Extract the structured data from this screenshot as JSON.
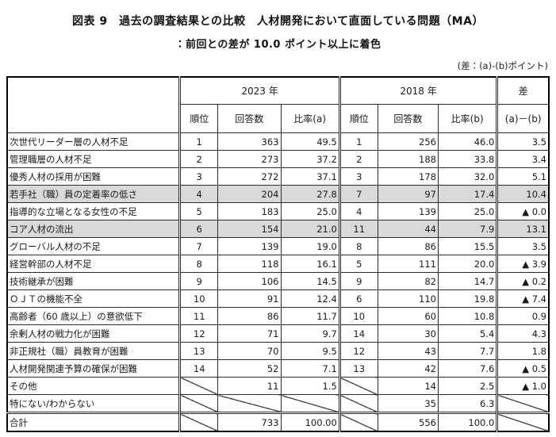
{
  "header": {
    "title": "図表 9　過去の調査結果との比較　人材開発において直面している問題（MA）",
    "subtitle": "：前回との差が 10.0 ポイント以上に着色",
    "note": "(差：(a)-(b)ポイント)"
  },
  "colors": {
    "shaded_row": "#d9d9d9",
    "border": "#2b2b2b",
    "text": "#1a1a1a"
  },
  "table": {
    "col_headers": {
      "y2023": "2023 年",
      "y2018": "2018 年",
      "diff": "差",
      "rank": "順位",
      "count": "回答数",
      "rate_a": "比率(a)",
      "rate_b": "比率(b)",
      "diff_formula": "(a)－(b)"
    },
    "rows": [
      {
        "label": "次世代リーダー層の人材不足",
        "y2023": [
          "1",
          "363",
          "49.5"
        ],
        "y2018": [
          "1",
          "256",
          "46.0"
        ],
        "diff": "3.5",
        "shaded": false
      },
      {
        "label": "管理職層の人材不足",
        "y2023": [
          "2",
          "273",
          "37.2"
        ],
        "y2018": [
          "2",
          "188",
          "33.8"
        ],
        "diff": "3.4",
        "shaded": false
      },
      {
        "label": "優秀人材の採用が困難",
        "y2023": [
          "3",
          "272",
          "37.1"
        ],
        "y2018": [
          "3",
          "178",
          "32.0"
        ],
        "diff": "5.1",
        "shaded": false
      },
      {
        "label": "若手社（職）員の定着率の低さ",
        "y2023": [
          "4",
          "204",
          "27.8"
        ],
        "y2018": [
          "7",
          "97",
          "17.4"
        ],
        "diff": "10.4",
        "shaded": true
      },
      {
        "label": "指導的な立場となる女性の不足",
        "y2023": [
          "5",
          "183",
          "25.0"
        ],
        "y2018": [
          "4",
          "139",
          "25.0"
        ],
        "diff": "▲ 0.0",
        "shaded": false
      },
      {
        "label": "コア人材の流出",
        "y2023": [
          "6",
          "154",
          "21.0"
        ],
        "y2018": [
          "11",
          "44",
          "7.9"
        ],
        "diff": "13.1",
        "shaded": true
      },
      {
        "label": "グローバル人材の不足",
        "y2023": [
          "7",
          "139",
          "19.0"
        ],
        "y2018": [
          "8",
          "86",
          "15.5"
        ],
        "diff": "3.5",
        "shaded": false
      },
      {
        "label": "経営幹部の人材不足",
        "y2023": [
          "8",
          "118",
          "16.1"
        ],
        "y2018": [
          "5",
          "111",
          "20.0"
        ],
        "diff": "▲ 3.9",
        "shaded": false
      },
      {
        "label": "技術継承が困難",
        "y2023": [
          "9",
          "106",
          "14.5"
        ],
        "y2018": [
          "9",
          "82",
          "14.7"
        ],
        "diff": "▲ 0.2",
        "shaded": false
      },
      {
        "label": "ＯＪＴの機能不全",
        "y2023": [
          "10",
          "91",
          "12.4"
        ],
        "y2018": [
          "6",
          "110",
          "19.8"
        ],
        "diff": "▲ 7.4",
        "shaded": false
      },
      {
        "label": "高齢者（60 歳以上）の意欲低下",
        "y2023": [
          "11",
          "86",
          "11.7"
        ],
        "y2018": [
          "10",
          "60",
          "10.8"
        ],
        "diff": "0.9",
        "shaded": false
      },
      {
        "label": "余剰人材の戦力化が困難",
        "y2023": [
          "12",
          "71",
          "9.7"
        ],
        "y2018": [
          "14",
          "30",
          "5.4"
        ],
        "diff": "4.3",
        "shaded": false
      },
      {
        "label": "非正規社（職）員教育が困難",
        "y2023": [
          "13",
          "70",
          "9.5"
        ],
        "y2018": [
          "12",
          "43",
          "7.7"
        ],
        "diff": "1.8",
        "shaded": false
      },
      {
        "label": "人材開発関連予算の確保が困難",
        "y2023": [
          "14",
          "52",
          "7.1"
        ],
        "y2018": [
          "13",
          "42",
          "7.6"
        ],
        "diff": "▲ 0.5",
        "shaded": false
      },
      {
        "label": "その他",
        "y2023": [
          null,
          "11",
          "1.5"
        ],
        "y2018": [
          null,
          "14",
          "2.5"
        ],
        "diff": "▲ 1.0",
        "shaded": false
      },
      {
        "label": "特にない/わからない",
        "y2023": [
          null,
          null,
          null
        ],
        "y2018": [
          null,
          "35",
          "6.3"
        ],
        "diff": null,
        "shaded": false
      },
      {
        "label": "合計",
        "y2023": [
          null,
          "733",
          "100.00"
        ],
        "y2018": [
          null,
          "556",
          "100.0"
        ],
        "diff": null,
        "shaded": false,
        "total": true
      }
    ]
  }
}
